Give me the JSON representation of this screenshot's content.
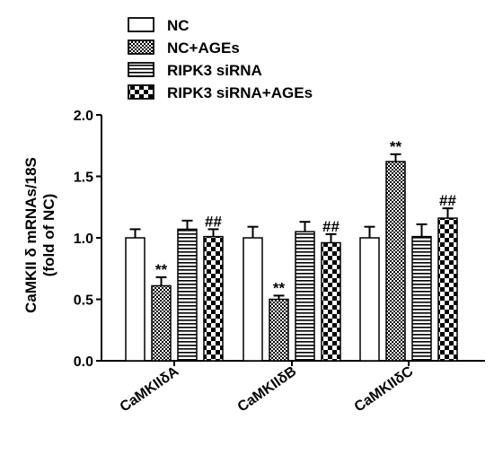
{
  "chart_data": {
    "type": "bar",
    "ylabel_line1": "CaMKII δ  mRNAs/18S",
    "ylabel_line2": "(fold of NC)",
    "ylim": [
      0,
      2.0
    ],
    "yticks": [
      "0.0",
      "0.5",
      "1.0",
      "1.5",
      "2.0"
    ],
    "categories": [
      "CaMKIIδA",
      "CaMKIIδB",
      "CaMKIIδC"
    ],
    "legend_position": "top",
    "series": [
      {
        "name": "NC",
        "pattern": "plain",
        "values": [
          1.0,
          1.0,
          1.0
        ],
        "errors": [
          0.07,
          0.09,
          0.09
        ],
        "labels": [
          "",
          "",
          ""
        ]
      },
      {
        "name": "NC+AGEs",
        "pattern": "fine-check",
        "values": [
          0.61,
          0.5,
          1.62
        ],
        "errors": [
          0.07,
          0.03,
          0.06
        ],
        "labels": [
          "**",
          "**",
          "**"
        ]
      },
      {
        "name": "RIPK3 siRNA",
        "pattern": "horizontal-stripes",
        "values": [
          1.07,
          1.05,
          1.01
        ],
        "errors": [
          0.07,
          0.08,
          0.1
        ],
        "labels": [
          "",
          "",
          ""
        ]
      },
      {
        "name": "RIPK3 siRNA+AGEs",
        "pattern": "coarse-check",
        "values": [
          1.01,
          0.96,
          1.16
        ],
        "errors": [
          0.06,
          0.07,
          0.08
        ],
        "labels": [
          "##",
          "##",
          "##"
        ]
      }
    ]
  }
}
